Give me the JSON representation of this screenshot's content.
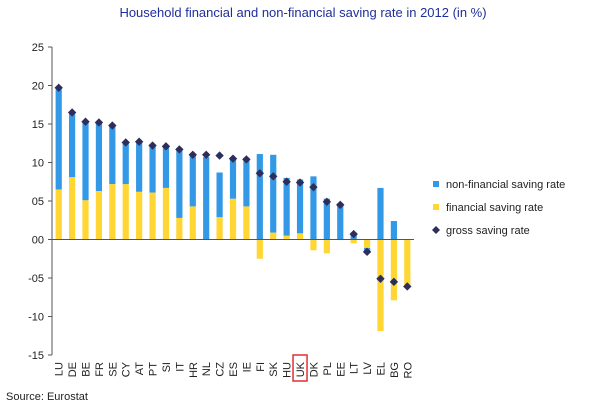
{
  "title": "Household financial and non-financial saving rate in 2012 (in %)",
  "source": "Source: Eurostat",
  "colors": {
    "non_financial": "#3399e6",
    "financial": "#ffd633",
    "gross": "#2e2e5c",
    "highlight": "#e03030",
    "title": "#1f2f9a"
  },
  "chart_data": {
    "type": "bar",
    "title": "Household financial and non-financial saving rate in 2012 (in %)",
    "xlabel": "",
    "ylabel": "",
    "ylim": [
      -15,
      25
    ],
    "yticks": [
      "25",
      "20",
      "15",
      "10",
      "05",
      "00",
      "-05",
      "-10",
      "-15"
    ],
    "ytick_values": [
      25,
      20,
      15,
      10,
      5,
      0,
      -5,
      -10,
      -15
    ],
    "grid": false,
    "legend_position": "right",
    "highlighted_category": "UK",
    "categories": [
      "LU",
      "DE",
      "BE",
      "FR",
      "SE",
      "CY",
      "AT",
      "PT",
      "SI",
      "IT",
      "HR",
      "NL",
      "CZ",
      "ES",
      "IE",
      "FI",
      "SK",
      "HU",
      "UK",
      "DK",
      "PL",
      "EE",
      "LT",
      "LV",
      "EL",
      "BG",
      "RO"
    ],
    "series": [
      {
        "name": "non-financial saving rate",
        "kind": "bar",
        "values": [
          13.0,
          8.3,
          10.1,
          8.9,
          7.6,
          5.5,
          6.6,
          6.0,
          5.3,
          9.0,
          6.6,
          10.7,
          5.8,
          5.1,
          6.3,
          11.1,
          10.1,
          7.5,
          7.0,
          8.2,
          5.3,
          4.7,
          0.9,
          -0.5,
          6.7,
          2.4,
          0.0
        ]
      },
      {
        "name": "financial saving rate",
        "kind": "bar",
        "values": [
          6.5,
          8.1,
          5.1,
          6.3,
          7.2,
          7.2,
          6.2,
          6.1,
          6.7,
          2.8,
          4.3,
          0.0,
          2.9,
          5.3,
          4.3,
          -2.5,
          0.9,
          0.5,
          0.8,
          -1.4,
          -1.8,
          0.0,
          -0.5,
          -1.1,
          -11.9,
          -7.9,
          -6.0
        ]
      },
      {
        "name": "gross saving rate",
        "kind": "marker",
        "values": [
          19.7,
          16.5,
          15.3,
          15.2,
          14.8,
          12.6,
          12.7,
          12.2,
          12.1,
          11.7,
          11.0,
          11.0,
          10.9,
          10.5,
          10.4,
          8.6,
          8.2,
          7.5,
          7.4,
          6.8,
          4.9,
          4.5,
          0.7,
          -1.6,
          -5.1,
          -5.5,
          -6.1
        ]
      }
    ]
  }
}
